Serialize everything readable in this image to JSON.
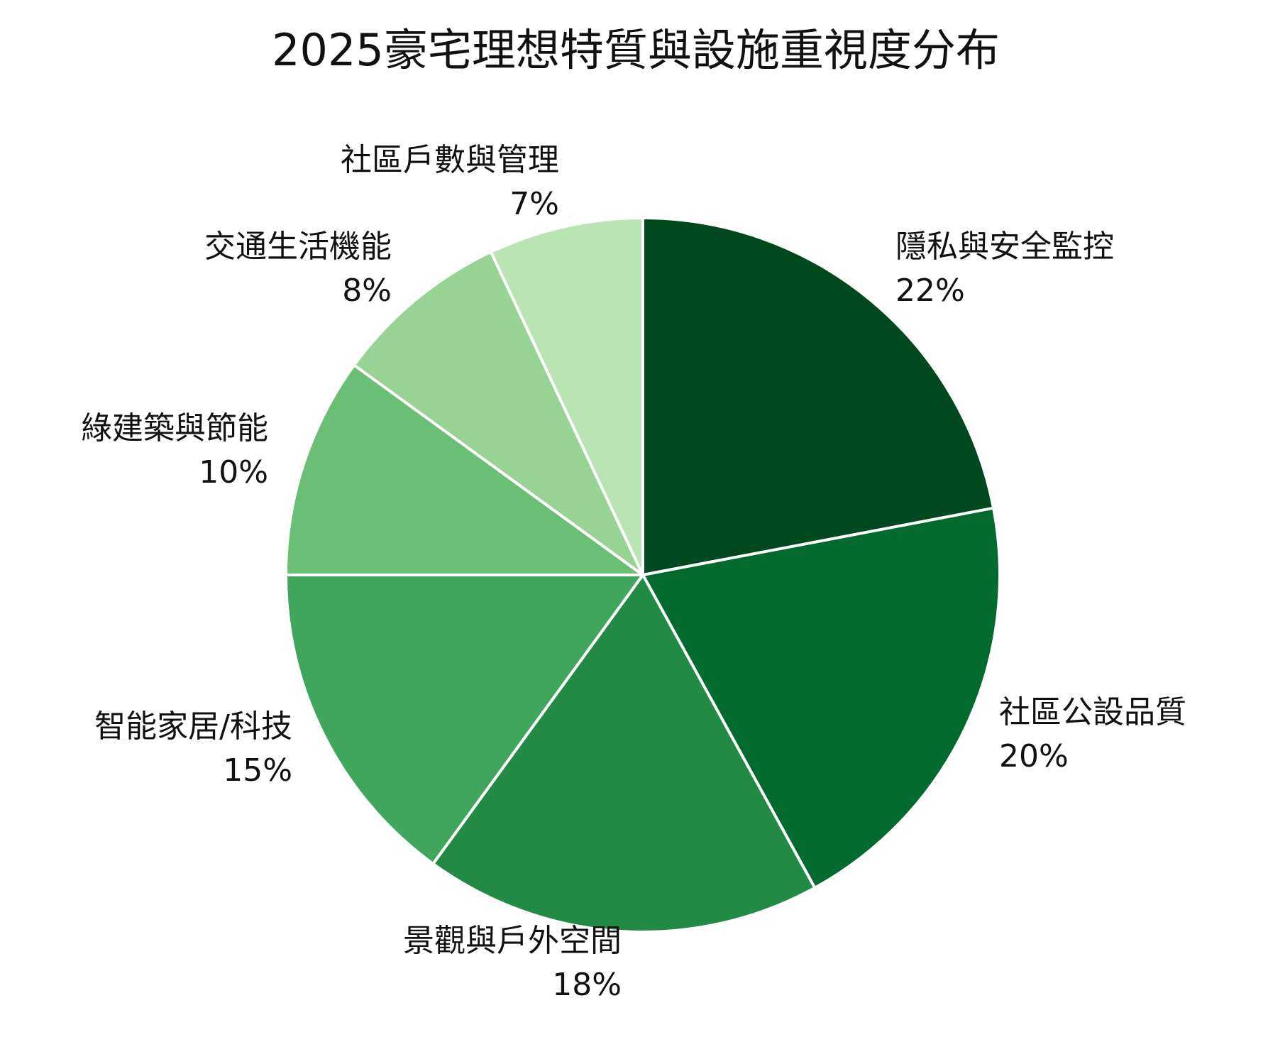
{
  "chart_data": {
    "type": "pie",
    "title": "2025豪宅理想特質與設施重視度分布",
    "slices": [
      {
        "label": "隱私與安全監控",
        "value": 22,
        "display": "22%",
        "color": "#00481e"
      },
      {
        "label": "社區公設品質",
        "value": 20,
        "display": "20%",
        "color": "#026a2d"
      },
      {
        "label": "景觀與戶外空間",
        "value": 18,
        "display": "18%",
        "color": "#228a44"
      },
      {
        "label": "智能家居/科技",
        "value": 15,
        "display": "15%",
        "color": "#40a65d"
      },
      {
        "label": "綠建築與節能",
        "value": 10,
        "display": "10%",
        "color": "#6bbf74"
      },
      {
        "label": "交通生活機能",
        "value": 8,
        "display": "8%",
        "color": "#97d394"
      },
      {
        "label": "社區戶數與管理",
        "value": 7,
        "display": "7%",
        "color": "#bae4b4"
      }
    ],
    "start": "top",
    "direction": "clockwise",
    "legend": "none"
  }
}
